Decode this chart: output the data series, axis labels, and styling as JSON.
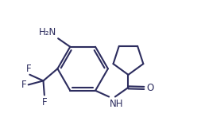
{
  "background": "#ffffff",
  "line_color": "#2c2c5e",
  "line_width": 1.5,
  "font_size": 8.5,
  "figsize": [
    2.58,
    1.67
  ],
  "dpi": 100,
  "xlim": [
    0,
    9.0
  ],
  "ylim": [
    0,
    6.0
  ]
}
